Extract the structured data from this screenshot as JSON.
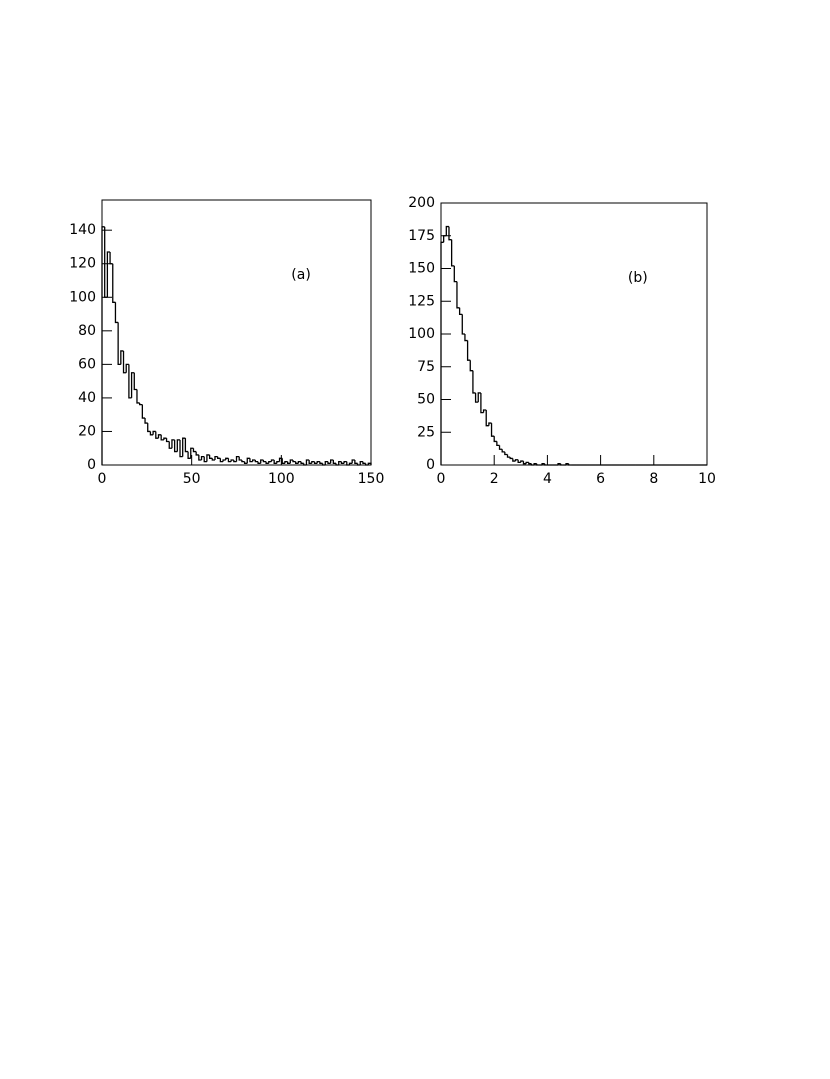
{
  "chart_data": [
    {
      "type": "histogram",
      "annotation": "(a)",
      "bins": [
        0,
        1.5,
        3,
        4.5,
        6,
        7.5,
        9,
        10.5,
        12,
        13.5,
        15,
        16.5,
        18,
        19.5,
        21,
        22.5,
        24,
        25.5,
        27,
        28.5,
        30,
        31.5,
        33,
        34.5,
        36,
        37.5,
        39,
        40.5,
        42,
        43.5,
        45,
        46.5,
        48,
        49.5,
        51,
        52.5,
        54,
        55.5,
        57,
        58.5,
        60,
        61.5,
        63,
        64.5,
        66,
        67.5,
        69,
        70.5,
        72,
        73.5,
        75,
        76.5,
        78,
        79.5,
        81,
        82.5,
        84,
        85.5,
        87,
        88.5,
        90,
        91.5,
        93,
        94.5,
        96,
        97.5,
        99,
        100.5,
        102,
        103.5,
        105,
        106.5,
        108,
        109.5,
        111,
        112.5,
        114,
        115.5,
        117,
        118.5,
        120,
        121.5,
        123,
        124.5,
        126,
        127.5,
        129,
        130.5,
        132,
        133.5,
        135,
        136.5,
        138,
        139.5,
        141,
        142.5,
        144,
        145.5,
        147,
        148.5,
        150
      ],
      "values": [
        142,
        100,
        127,
        120,
        97,
        85,
        60,
        68,
        55,
        60,
        40,
        55,
        45,
        37,
        36,
        28,
        25,
        20,
        18,
        20,
        16,
        18,
        15,
        16,
        14,
        10,
        15,
        8,
        15,
        5,
        16,
        8,
        4,
        10,
        8,
        6,
        3,
        5,
        2,
        6,
        4,
        3,
        5,
        4,
        2,
        3,
        4,
        2,
        3,
        2,
        5,
        3,
        2,
        1,
        4,
        2,
        3,
        2,
        1,
        3,
        2,
        1,
        2,
        3,
        1,
        2,
        4,
        1,
        2,
        1,
        3,
        2,
        1,
        2,
        1,
        0,
        3,
        1,
        2,
        1,
        2,
        1,
        0,
        2,
        1,
        3,
        1,
        0,
        2,
        1,
        2,
        0,
        1,
        3,
        1,
        0,
        2,
        1,
        0,
        1
      ],
      "xlim": [
        0,
        150
      ],
      "xticks": [
        0,
        50,
        100,
        150
      ],
      "ylim": [
        0,
        158
      ],
      "yticks": [
        0,
        20,
        40,
        60,
        80,
        100,
        120,
        140
      ],
      "color": "#000000"
    },
    {
      "type": "histogram",
      "annotation": "(b)",
      "bins": [
        0,
        0.1,
        0.2,
        0.3,
        0.4,
        0.5,
        0.6,
        0.7,
        0.8,
        0.9,
        1,
        1.1,
        1.2,
        1.3,
        1.4,
        1.5,
        1.6,
        1.7,
        1.8,
        1.9,
        2,
        2.1,
        2.2,
        2.3,
        2.4,
        2.5,
        2.6,
        2.7,
        2.8,
        2.9,
        3,
        3.1,
        3.2,
        3.3,
        3.4,
        3.5,
        3.6,
        3.7,
        3.8,
        3.9,
        4,
        4.1,
        4.2,
        4.3,
        4.4,
        4.5,
        4.6,
        4.7,
        4.8,
        4.9,
        5,
        5.1,
        5.2,
        5.3,
        5.4,
        5.5,
        5.6,
        5.7,
        5.8,
        5.9,
        6,
        6.1,
        6.2,
        6.3,
        6.4,
        6.5,
        6.6,
        6.7,
        6.8,
        6.9,
        7,
        7.1,
        7.2,
        7.3,
        7.4,
        7.5,
        7.6,
        7.7,
        7.8,
        7.9,
        8,
        8.1,
        8.2,
        8.3,
        8.4,
        8.5,
        8.6,
        8.7,
        8.8,
        8.9,
        9,
        9.1,
        9.2,
        9.3,
        9.4,
        9.5,
        9.6,
        9.7,
        9.8,
        9.9,
        10
      ],
      "values": [
        170,
        175,
        182,
        172,
        152,
        140,
        120,
        115,
        100,
        95,
        80,
        72,
        55,
        48,
        55,
        40,
        42,
        30,
        32,
        22,
        18,
        15,
        12,
        10,
        8,
        6,
        5,
        3,
        4,
        2,
        3,
        1,
        2,
        1,
        0,
        1,
        0,
        0,
        1,
        0,
        0,
        0,
        0,
        0,
        1,
        0,
        0,
        1,
        0,
        0,
        0,
        0,
        0,
        0,
        0,
        0,
        0,
        0,
        0,
        0,
        0,
        0,
        0,
        0,
        0,
        0,
        0,
        0,
        0,
        0,
        0,
        0,
        0,
        0,
        0,
        0,
        0,
        0,
        0,
        0,
        0,
        0,
        0,
        0,
        0,
        0,
        0,
        0,
        0,
        0,
        0,
        0,
        0,
        0,
        0,
        0,
        0,
        0,
        0,
        0
      ],
      "xlim": [
        0,
        10
      ],
      "xticks": [
        0,
        2,
        4,
        6,
        8,
        10
      ],
      "ylim": [
        0,
        200
      ],
      "yticks": [
        0,
        25,
        50,
        75,
        100,
        125,
        150,
        175,
        200
      ],
      "color": "#000000"
    }
  ]
}
